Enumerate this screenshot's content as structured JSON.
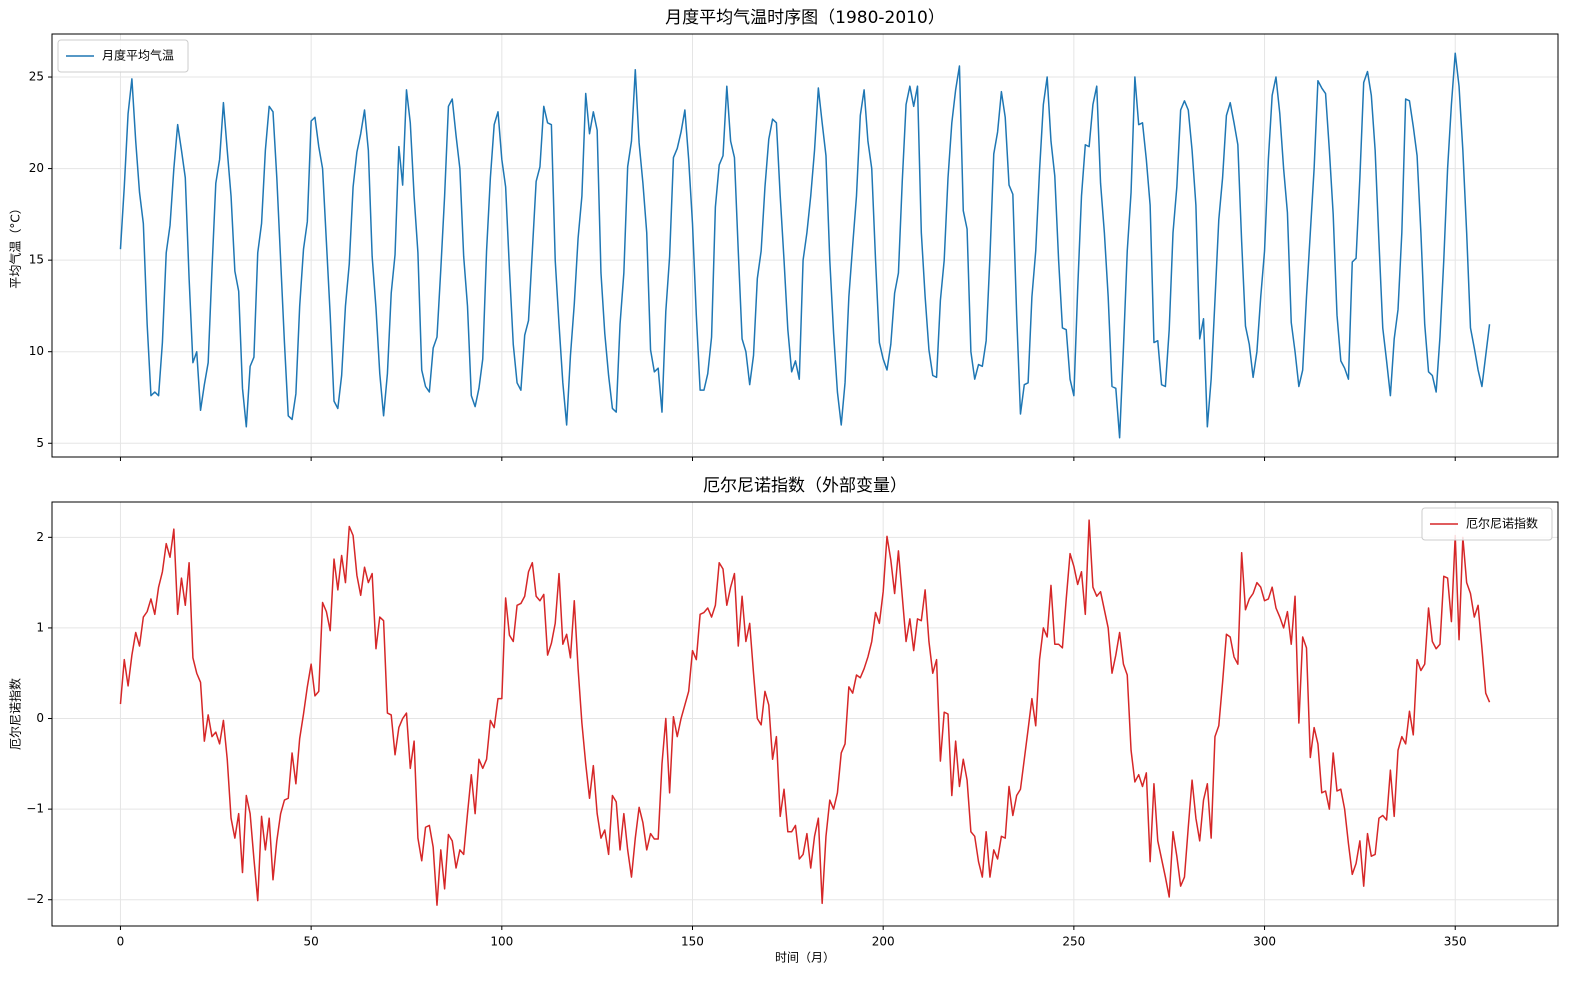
{
  "chart_data": [
    {
      "type": "line",
      "title": "月度平均气温时序图（1980-2010）",
      "ylabel": "平均气温（°C）",
      "xlim": [
        -17.95,
        376.95
      ],
      "xticks": [
        0,
        50,
        100,
        150,
        200,
        250,
        300,
        350
      ],
      "xtick_labels": false,
      "ylim": [
        4.25,
        27.35
      ],
      "yticks": [
        5,
        10,
        15,
        20,
        25
      ],
      "grid": true,
      "legend": "upper left",
      "series": [
        {
          "name": "月度平均气温",
          "color": "#1f77b4",
          "values": [
            15.6,
            19,
            23,
            24.9,
            21.5,
            18.7,
            17,
            11.5,
            7.6,
            7.8,
            7.6,
            10.5,
            15.4,
            16.9,
            20,
            22.4,
            21,
            19.5,
            14,
            9.4,
            10,
            6.8,
            8.2,
            9.4,
            14.5,
            19.2,
            20.5,
            23.6,
            21,
            18.5,
            14.4,
            13.3,
            8,
            5.9,
            9.2,
            9.7,
            15.4,
            17,
            21,
            23.4,
            23.1,
            19.5,
            15,
            10.5,
            6.5,
            6.3,
            7.7,
            12.5,
            15.6,
            17.1,
            22.6,
            22.8,
            21.2,
            20,
            16,
            12,
            7.3,
            6.9,
            8.7,
            12.5,
            14.8,
            19,
            20.9,
            21.9,
            23.2,
            21,
            15.2,
            12.4,
            8.8,
            6.5,
            8.8,
            13.2,
            15.3,
            21.2,
            19.1,
            24.3,
            22.5,
            18.5,
            15.4,
            9,
            8.1,
            7.8,
            10.2,
            10.8,
            14.5,
            18.5,
            23.4,
            23.8,
            21.8,
            20,
            15.2,
            12.5,
            7.6,
            7,
            8,
            9.6,
            15.5,
            19.5,
            22.4,
            23.1,
            20.5,
            19,
            14.5,
            10.4,
            8.3,
            7.9,
            10.9,
            11.7,
            15.5,
            19.3,
            20.1,
            23.4,
            22.5,
            22.4,
            15,
            11.5,
            8.3,
            6,
            9.8,
            12.6,
            16.2,
            18.5,
            24.1,
            21.9,
            23.1,
            22.1,
            14.3,
            11,
            8.7,
            6.9,
            6.7,
            11.5,
            14.3,
            20.1,
            21.5,
            25.4,
            21.4,
            19.2,
            16.5,
            10.1,
            8.9,
            9.1,
            6.7,
            12.2,
            15.2,
            20.6,
            21.1,
            22,
            23.2,
            20.5,
            17,
            12,
            7.9,
            7.9,
            8.8,
            10.8,
            17.9,
            20.2,
            20.7,
            24.5,
            21.5,
            20.6,
            15.5,
            10.7,
            10,
            8.2,
            9.8,
            14,
            15.5,
            19,
            21.6,
            22.7,
            22.5,
            18.5,
            15,
            11.2,
            8.9,
            9.5,
            8.5,
            15,
            16.5,
            18.5,
            21,
            24.4,
            22.5,
            20.7,
            15,
            11,
            7.8,
            6,
            8.3,
            13,
            15.8,
            18.5,
            22.9,
            24.3,
            21.5,
            20,
            15,
            10.5,
            9.6,
            9,
            10.4,
            13.2,
            14.3,
            19.3,
            23.5,
            24.5,
            23.4,
            24.5,
            16.5,
            13,
            10.1,
            8.7,
            8.6,
            12.8,
            15,
            19.5,
            22.5,
            24.3,
            25.6,
            17.7,
            16.7,
            10,
            8.5,
            9.3,
            9.2,
            10.6,
            15.2,
            20.8,
            22,
            24.2,
            22.8,
            19.1,
            18.6,
            12,
            6.6,
            8.2,
            8.3,
            13,
            15.5,
            19.9,
            23.5,
            25,
            21.5,
            19.6,
            15,
            11.3,
            11.2,
            8.5,
            7.6,
            13.4,
            18.5,
            21.3,
            21.2,
            23.5,
            24.5,
            19.2,
            16.5,
            13,
            8.1,
            8,
            5.3,
            10.2,
            15.5,
            18.7,
            25,
            22.4,
            22.5,
            20.5,
            18,
            10.5,
            10.6,
            8.2,
            8.1,
            11.2,
            16.5,
            19,
            23.2,
            23.7,
            23.2,
            21,
            18,
            10.7,
            11.8,
            5.9,
            8.5,
            12.8,
            17.2,
            19.5,
            22.9,
            23.6,
            22.5,
            21.3,
            16,
            11.4,
            10.4,
            8.6,
            10,
            13,
            15.5,
            20.5,
            24,
            25,
            23,
            20,
            17.6,
            11.6,
            10,
            8.1,
            9,
            13,
            16.5,
            20,
            24.8,
            24.4,
            24.1,
            21,
            17.5,
            12,
            9.5,
            9.1,
            8.5,
            14.9,
            15.1,
            19.5,
            24.7,
            25.3,
            24,
            21,
            16,
            11.3,
            9.5,
            7.6,
            10.7,
            12.3,
            16.5,
            23.8,
            23.7,
            22.3,
            20.7,
            16.5,
            11.5,
            8.9,
            8.7,
            7.8,
            10.8,
            15,
            20,
            23.5,
            26.3,
            24.5,
            21,
            16.5,
            11.3,
            10.2,
            9,
            8.1,
            9.8,
            11.5
          ]
        }
      ]
    },
    {
      "type": "line",
      "title": "厄尔尼诺指数（外部变量）",
      "ylabel": "厄尔尼诺指数",
      "xlabel": "时间（月）",
      "xlim": [
        -17.95,
        376.95
      ],
      "xticks": [
        0,
        50,
        100,
        150,
        200,
        250,
        300,
        350
      ],
      "xtick_labels": true,
      "ylim": [
        -2.29,
        2.39
      ],
      "yticks": [
        {
          "value": -2,
          "label": "−2"
        },
        {
          "value": -1,
          "label": "−1"
        },
        0,
        1,
        2
      ],
      "grid": true,
      "legend": "upper right",
      "series": [
        {
          "name": "厄尔尼诺指数",
          "color": "#d62728",
          "values": [
            0.16,
            0.65,
            0.36,
            0.7,
            0.95,
            0.8,
            1.12,
            1.18,
            1.32,
            1.15,
            1.45,
            1.62,
            1.93,
            1.78,
            2.09,
            1.15,
            1.55,
            1.25,
            1.72,
            0.67,
            0.5,
            0.4,
            -0.25,
            0.04,
            -0.2,
            -0.15,
            -0.28,
            -0.02,
            -0.45,
            -1.1,
            -1.32,
            -1.05,
            -1.7,
            -0.85,
            -1.05,
            -1.55,
            -2.01,
            -1.08,
            -1.45,
            -1.1,
            -1.78,
            -1.35,
            -1.05,
            -0.9,
            -0.88,
            -0.38,
            -0.72,
            -0.22,
            0.05,
            0.35,
            0.6,
            0.25,
            0.3,
            1.28,
            1.18,
            0.97,
            1.76,
            1.42,
            1.8,
            1.5,
            2.12,
            2.02,
            1.58,
            1.36,
            1.67,
            1.5,
            1.6,
            0.77,
            1.12,
            1.08,
            0.06,
            0.04,
            -0.4,
            -0.1,
            0,
            0.06,
            -0.55,
            -0.25,
            -1.32,
            -1.57,
            -1.2,
            -1.18,
            -1.42,
            -2.06,
            -1.45,
            -1.88,
            -1.28,
            -1.35,
            -1.65,
            -1.45,
            -1.5,
            -1.05,
            -0.62,
            -1.05,
            -0.45,
            -0.55,
            -0.45,
            -0.02,
            -0.1,
            0.22,
            0.22,
            1.33,
            0.92,
            0.85,
            1.25,
            1.27,
            1.35,
            1.62,
            1.72,
            1.35,
            1.3,
            1.37,
            0.7,
            0.83,
            1.05,
            1.6,
            0.82,
            0.93,
            0.67,
            1.3,
            0.55,
            -0.05,
            -0.5,
            -0.88,
            -0.52,
            -1.05,
            -1.32,
            -1.23,
            -1.5,
            -0.85,
            -0.92,
            -1.45,
            -1.05,
            -1.45,
            -1.75,
            -1.32,
            -0.98,
            -1.15,
            -1.45,
            -1.27,
            -1.33,
            -1.33,
            -0.5,
            0,
            -0.82,
            0.02,
            -0.2,
            0,
            0.15,
            0.3,
            0.75,
            0.65,
            1.15,
            1.17,
            1.22,
            1.12,
            1.25,
            1.72,
            1.65,
            1.25,
            1.45,
            1.6,
            0.8,
            1.35,
            0.85,
            1.05,
            0.5,
            0,
            -0.07,
            0.3,
            0.15,
            -0.45,
            -0.2,
            -1.08,
            -0.78,
            -1.25,
            -1.25,
            -1.18,
            -1.55,
            -1.5,
            -1.27,
            -1.65,
            -1.3,
            -1.1,
            -2.04,
            -1.3,
            -0.9,
            -1,
            -0.82,
            -0.38,
            -0.28,
            0.35,
            0.28,
            0.48,
            0.45,
            0.55,
            0.68,
            0.85,
            1.17,
            1.05,
            1.4,
            2.01,
            1.75,
            1.38,
            1.85,
            1.35,
            0.85,
            1.1,
            0.75,
            1.1,
            1.08,
            1.42,
            0.85,
            0.5,
            0.65,
            -0.47,
            0.07,
            0.05,
            -0.85,
            -0.25,
            -0.75,
            -0.45,
            -0.68,
            -1.25,
            -1.3,
            -1.58,
            -1.75,
            -1.25,
            -1.75,
            -1.45,
            -1.55,
            -1.3,
            -1.32,
            -0.75,
            -1.07,
            -0.85,
            -0.78,
            -0.45,
            -0.12,
            0.22,
            -0.08,
            0.65,
            1,
            0.9,
            1.47,
            0.82,
            0.82,
            0.78,
            1.32,
            1.82,
            1.68,
            1.48,
            1.62,
            1.15,
            2.19,
            1.45,
            1.35,
            1.4,
            1.2,
            1,
            0.5,
            0.7,
            0.95,
            0.6,
            0.48,
            -0.35,
            -0.7,
            -0.62,
            -0.75,
            -0.6,
            -1.58,
            -0.72,
            -1.35,
            -1.55,
            -1.75,
            -1.97,
            -1.25,
            -1.52,
            -1.85,
            -1.75,
            -1.2,
            -0.68,
            -1.1,
            -1.35,
            -0.9,
            -0.72,
            -1.32,
            -0.2,
            -0.08,
            0.4,
            0.93,
            0.9,
            0.68,
            0.6,
            1.83,
            1.2,
            1.32,
            1.38,
            1.5,
            1.45,
            1.3,
            1.32,
            1.45,
            1.22,
            1.12,
            1,
            1.18,
            0.82,
            1.35,
            -0.05,
            0.9,
            0.78,
            -0.43,
            -0.1,
            -0.28,
            -0.82,
            -0.8,
            -1,
            -0.38,
            -0.8,
            -0.78,
            -1,
            -1.38,
            -1.72,
            -1.6,
            -1.35,
            -1.85,
            -1.27,
            -1.52,
            -1.5,
            -1.1,
            -1.07,
            -1.12,
            -0.57,
            -1.08,
            -0.35,
            -0.2,
            -0.28,
            0.08,
            -0.18,
            0.65,
            0.53,
            0.6,
            1.22,
            0.85,
            0.77,
            0.82,
            1.57,
            1.55,
            1.07,
            2.02,
            0.87,
            2,
            1.5,
            1.38,
            1.12,
            1.25,
            0.78,
            0.28,
            0.18
          ]
        }
      ]
    }
  ]
}
